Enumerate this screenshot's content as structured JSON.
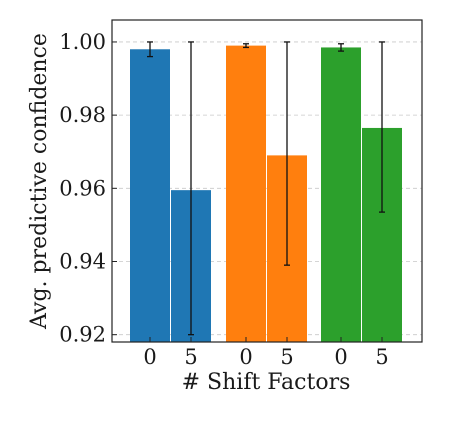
{
  "chart_data": {
    "type": "bar",
    "title": "",
    "xlabel": "# Shift Factors",
    "ylabel": "Avg. predictive confidence",
    "ylim": [
      0.918,
      1.006
    ],
    "yticks": [
      0.92,
      0.94,
      0.96,
      0.98,
      1.0
    ],
    "ytick_labels": [
      "0.92",
      "0.94",
      "0.96",
      "0.98",
      "1.00"
    ],
    "grid": "horizontal dashed",
    "legend": "none",
    "groups": [
      {
        "color": "#1f77b4",
        "bars": [
          {
            "category": "0",
            "value": 0.998,
            "err_low": 0.996,
            "err_high": 1.0
          },
          {
            "category": "5",
            "value": 0.9595,
            "err_low": 0.92,
            "err_high": 1.0
          }
        ]
      },
      {
        "color": "#ff7f0e",
        "bars": [
          {
            "category": "0",
            "value": 0.999,
            "err_low": 0.9985,
            "err_high": 0.9995
          },
          {
            "category": "5",
            "value": 0.969,
            "err_low": 0.939,
            "err_high": 1.0
          }
        ]
      },
      {
        "color": "#2ca02c",
        "bars": [
          {
            "category": "0",
            "value": 0.9985,
            "err_low": 0.9975,
            "err_high": 0.9995
          },
          {
            "category": "5",
            "value": 0.9765,
            "err_low": 0.9535,
            "err_high": 1.0
          }
        ]
      }
    ]
  }
}
